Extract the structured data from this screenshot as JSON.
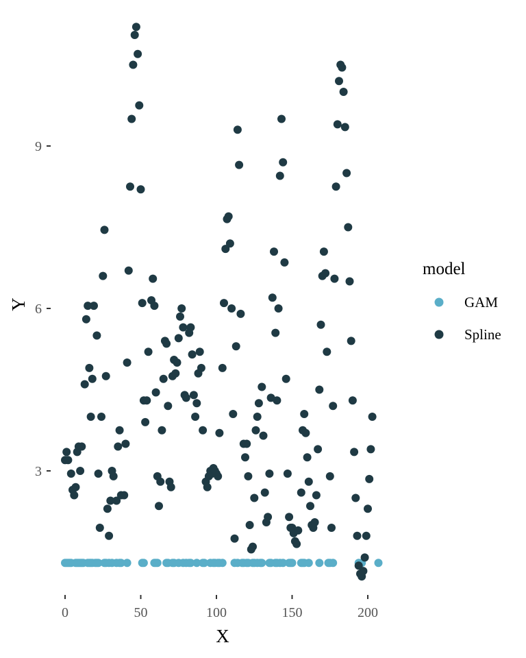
{
  "chart_data": {
    "type": "scatter",
    "title": "",
    "xlabel": "X",
    "ylabel": "Y",
    "xlim": [
      -4,
      210
    ],
    "ylim": [
      0.6,
      11.2
    ],
    "xticks": [
      0,
      50,
      100,
      150,
      200
    ],
    "yticks": [
      3,
      6,
      9
    ],
    "x_tick_labels": [
      "0",
      "50",
      "100",
      "150",
      "200"
    ],
    "y_tick_labels": [
      "3",
      "6",
      "9"
    ],
    "grid": false,
    "legend": {
      "title": "model",
      "position": "right",
      "entries": [
        "GAM",
        "Spline"
      ]
    },
    "colors": {
      "GAM": "#5AAEC8",
      "Spline": "#1F3A44"
    },
    "series": [
      {
        "name": "GAM",
        "points": [
          [
            0,
            1.3
          ],
          [
            1,
            1.3
          ],
          [
            2,
            1.3
          ],
          [
            3,
            1.3
          ],
          [
            4,
            1.3
          ],
          [
            7,
            1.3
          ],
          [
            8,
            1.3
          ],
          [
            9,
            1.3
          ],
          [
            10,
            1.3
          ],
          [
            11,
            1.3
          ],
          [
            12,
            1.3
          ],
          [
            15,
            1.3
          ],
          [
            16,
            1.3
          ],
          [
            17,
            1.3
          ],
          [
            18,
            1.3
          ],
          [
            20,
            1.3
          ],
          [
            21,
            1.3
          ],
          [
            22,
            1.3
          ],
          [
            26,
            1.3
          ],
          [
            27,
            1.3
          ],
          [
            29,
            1.3
          ],
          [
            31,
            1.3
          ],
          [
            34,
            1.3
          ],
          [
            36,
            1.3
          ],
          [
            37,
            1.3
          ],
          [
            41,
            1.3
          ],
          [
            51,
            1.3
          ],
          [
            52,
            1.3
          ],
          [
            59,
            1.3
          ],
          [
            60,
            1.3
          ],
          [
            61,
            1.3
          ],
          [
            67,
            1.3
          ],
          [
            68,
            1.3
          ],
          [
            71,
            1.3
          ],
          [
            72,
            1.3
          ],
          [
            75,
            1.3
          ],
          [
            78,
            1.3
          ],
          [
            80,
            1.3
          ],
          [
            82,
            1.3
          ],
          [
            83,
            1.3
          ],
          [
            87,
            1.3
          ],
          [
            91,
            1.3
          ],
          [
            92,
            1.3
          ],
          [
            96,
            1.3
          ],
          [
            98,
            1.3
          ],
          [
            99,
            1.3
          ],
          [
            101,
            1.3
          ],
          [
            102,
            1.3
          ],
          [
            104,
            1.3
          ],
          [
            112,
            1.3
          ],
          [
            114,
            1.3
          ],
          [
            117,
            1.3
          ],
          [
            118,
            1.3
          ],
          [
            120,
            1.3
          ],
          [
            121,
            1.3
          ],
          [
            124,
            1.3
          ],
          [
            125,
            1.3
          ],
          [
            127,
            1.3
          ],
          [
            129,
            1.3
          ],
          [
            130,
            1.3
          ],
          [
            135,
            1.3
          ],
          [
            136,
            1.3
          ],
          [
            139,
            1.3
          ],
          [
            140,
            1.3
          ],
          [
            142,
            1.3
          ],
          [
            144,
            1.3
          ],
          [
            148,
            1.3
          ],
          [
            149,
            1.3
          ],
          [
            150,
            1.3
          ],
          [
            156,
            1.3
          ],
          [
            157,
            1.3
          ],
          [
            158,
            1.3
          ],
          [
            161,
            1.3
          ],
          [
            168,
            1.3
          ],
          [
            174,
            1.3
          ],
          [
            175,
            1.3
          ],
          [
            177,
            1.3
          ],
          [
            194,
            1.3
          ],
          [
            196,
            1.3
          ],
          [
            207,
            1.3
          ]
        ]
      },
      {
        "name": "Spline",
        "points": [
          [
            0,
            3.2
          ],
          [
            1,
            3.35
          ],
          [
            2,
            3.2
          ],
          [
            4,
            2.95
          ],
          [
            5,
            2.65
          ],
          [
            6,
            2.55
          ],
          [
            7,
            2.7
          ],
          [
            8,
            3.35
          ],
          [
            9,
            3.45
          ],
          [
            10,
            3.0
          ],
          [
            11,
            3.45
          ],
          [
            13,
            4.6
          ],
          [
            14,
            5.8
          ],
          [
            15,
            6.05
          ],
          [
            16,
            4.9
          ],
          [
            17,
            4.0
          ],
          [
            18,
            4.7
          ],
          [
            19,
            6.05
          ],
          [
            21,
            5.5
          ],
          [
            22,
            2.95
          ],
          [
            23,
            1.95
          ],
          [
            24,
            4.0
          ],
          [
            25,
            6.6
          ],
          [
            26,
            7.45
          ],
          [
            27,
            4.75
          ],
          [
            28,
            2.3
          ],
          [
            29,
            1.8
          ],
          [
            30,
            2.45
          ],
          [
            31,
            3.0
          ],
          [
            32,
            2.9
          ],
          [
            34,
            2.45
          ],
          [
            35,
            3.45
          ],
          [
            36,
            3.75
          ],
          [
            37,
            2.55
          ],
          [
            39,
            2.55
          ],
          [
            40,
            3.5
          ],
          [
            41,
            5.0
          ],
          [
            42,
            6.7
          ],
          [
            43,
            8.25
          ],
          [
            44,
            9.5
          ],
          [
            45,
            10.5
          ],
          [
            46,
            11.05
          ],
          [
            47,
            11.2
          ],
          [
            48,
            10.7
          ],
          [
            49,
            9.75
          ],
          [
            50,
            8.2
          ],
          [
            51,
            6.1
          ],
          [
            52,
            4.3
          ],
          [
            53,
            3.9
          ],
          [
            54,
            4.3
          ],
          [
            55,
            5.2
          ],
          [
            57,
            6.15
          ],
          [
            58,
            6.55
          ],
          [
            59,
            6.05
          ],
          [
            60,
            4.45
          ],
          [
            61,
            2.9
          ],
          [
            62,
            2.35
          ],
          [
            63,
            2.8
          ],
          [
            64,
            3.75
          ],
          [
            65,
            4.7
          ],
          [
            66,
            5.4
          ],
          [
            67,
            5.35
          ],
          [
            68,
            4.2
          ],
          [
            69,
            2.8
          ],
          [
            70,
            2.7
          ],
          [
            71,
            4.75
          ],
          [
            72,
            5.05
          ],
          [
            73,
            4.8
          ],
          [
            74,
            5.0
          ],
          [
            75,
            5.45
          ],
          [
            76,
            5.85
          ],
          [
            77,
            6.0
          ],
          [
            78,
            5.65
          ],
          [
            79,
            4.4
          ],
          [
            80,
            4.35
          ],
          [
            82,
            5.55
          ],
          [
            83,
            5.65
          ],
          [
            84,
            5.15
          ],
          [
            85,
            4.4
          ],
          [
            86,
            4.0
          ],
          [
            87,
            4.25
          ],
          [
            88,
            4.8
          ],
          [
            89,
            5.2
          ],
          [
            90,
            4.9
          ],
          [
            91,
            3.75
          ],
          [
            93,
            2.8
          ],
          [
            94,
            2.7
          ],
          [
            95,
            2.9
          ],
          [
            96,
            3.0
          ],
          [
            97,
            2.95
          ],
          [
            98,
            3.05
          ],
          [
            99,
            3.0
          ],
          [
            100,
            2.95
          ],
          [
            101,
            2.9
          ],
          [
            102,
            3.7
          ],
          [
            104,
            4.9
          ],
          [
            105,
            6.1
          ],
          [
            106,
            7.1
          ],
          [
            107,
            7.65
          ],
          [
            108,
            7.7
          ],
          [
            109,
            7.2
          ],
          [
            110,
            6.0
          ],
          [
            111,
            4.05
          ],
          [
            112,
            1.75
          ],
          [
            113,
            5.3
          ],
          [
            114,
            9.3
          ],
          [
            115,
            8.65
          ],
          [
            116,
            5.9
          ],
          [
            118,
            3.5
          ],
          [
            119,
            3.25
          ],
          [
            120,
            3.5
          ],
          [
            121,
            2.9
          ],
          [
            122,
            2.0
          ],
          [
            123,
            1.55
          ],
          [
            124,
            1.6
          ],
          [
            125,
            2.5
          ],
          [
            126,
            3.75
          ],
          [
            127,
            4.0
          ],
          [
            128,
            4.25
          ],
          [
            130,
            4.55
          ],
          [
            131,
            3.65
          ],
          [
            132,
            2.6
          ],
          [
            133,
            2.05
          ],
          [
            134,
            2.15
          ],
          [
            135,
            2.95
          ],
          [
            136,
            4.35
          ],
          [
            137,
            6.2
          ],
          [
            138,
            7.05
          ],
          [
            139,
            5.55
          ],
          [
            140,
            4.3
          ],
          [
            141,
            6.0
          ],
          [
            142,
            8.45
          ],
          [
            143,
            9.5
          ],
          [
            144,
            8.7
          ],
          [
            145,
            6.85
          ],
          [
            146,
            4.7
          ],
          [
            147,
            2.95
          ],
          [
            148,
            2.15
          ],
          [
            149,
            1.95
          ],
          [
            150,
            1.95
          ],
          [
            151,
            1.85
          ],
          [
            152,
            1.7
          ],
          [
            153,
            1.65
          ],
          [
            154,
            1.9
          ],
          [
            156,
            2.6
          ],
          [
            157,
            3.75
          ],
          [
            158,
            4.05
          ],
          [
            159,
            3.7
          ],
          [
            160,
            3.25
          ],
          [
            161,
            2.8
          ],
          [
            162,
            2.35
          ],
          [
            163,
            2.0
          ],
          [
            164,
            1.95
          ],
          [
            165,
            2.05
          ],
          [
            166,
            2.55
          ],
          [
            167,
            3.4
          ],
          [
            168,
            4.5
          ],
          [
            169,
            5.7
          ],
          [
            170,
            6.6
          ],
          [
            171,
            7.05
          ],
          [
            172,
            6.65
          ],
          [
            173,
            5.2
          ],
          [
            175,
            2.9
          ],
          [
            176,
            1.95
          ],
          [
            177,
            4.2
          ],
          [
            178,
            6.55
          ],
          [
            179,
            8.25
          ],
          [
            180,
            9.4
          ],
          [
            181,
            10.2
          ],
          [
            182,
            10.5
          ],
          [
            183,
            10.45
          ],
          [
            184,
            10.0
          ],
          [
            185,
            9.35
          ],
          [
            186,
            8.5
          ],
          [
            187,
            7.5
          ],
          [
            188,
            6.5
          ],
          [
            189,
            5.4
          ],
          [
            190,
            4.3
          ],
          [
            191,
            3.35
          ],
          [
            192,
            2.5
          ],
          [
            193,
            1.8
          ],
          [
            194,
            1.25
          ],
          [
            195,
            1.1
          ],
          [
            196,
            1.05
          ],
          [
            197,
            1.15
          ],
          [
            198,
            1.4
          ],
          [
            199,
            1.8
          ],
          [
            200,
            2.3
          ],
          [
            201,
            2.85
          ],
          [
            202,
            3.4
          ],
          [
            203,
            4.0
          ]
        ]
      }
    ]
  }
}
